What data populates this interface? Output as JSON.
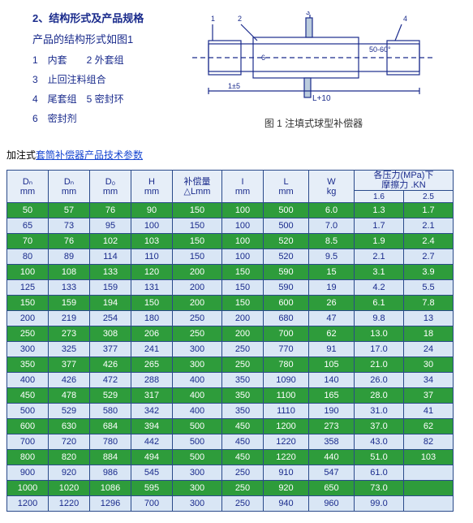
{
  "top": {
    "title": "2、结构形式及产品规格",
    "line1": "产品的结构形式如图1",
    "legend": [
      "1　内套　　2 外套组",
      "3　止回注料组合",
      "4　尾套组　5 密封环",
      "6　密封剂"
    ],
    "caption": "图 1  注填式球型补偿器"
  },
  "subtitle": {
    "plain": "加注式",
    "link": "套筒补偿器产品技术参数"
  },
  "colors": {
    "green": "#2e9c3b",
    "blue": "#d9e6f5",
    "border": "#2a4a8a",
    "ink": "#1a2b8c"
  },
  "headers": {
    "main": [
      "Dₙ\nmm",
      "Dₙ\nmm",
      "D₀\nmm",
      "H\nmm",
      "补偿量\n△Lmm",
      "I\nmm",
      "L\nmm",
      "W\nkg",
      "各压力(MPa)下\n摩擦力 .KN"
    ],
    "sub": [
      "1.6",
      "2.5"
    ]
  },
  "widths": [
    50,
    50,
    50,
    50,
    60,
    50,
    55,
    55,
    60,
    60
  ],
  "rows": [
    [
      "50",
      "57",
      "76",
      "90",
      "150",
      "100",
      "500",
      "6.0",
      "1.3",
      "1.7"
    ],
    [
      "65",
      "73",
      "95",
      "100",
      "150",
      "100",
      "500",
      "7.0",
      "1.7",
      "2.1"
    ],
    [
      "70",
      "76",
      "102",
      "103",
      "150",
      "100",
      "520",
      "8.5",
      "1.9",
      "2.4"
    ],
    [
      "80",
      "89",
      "114",
      "110",
      "150",
      "100",
      "520",
      "9.5",
      "2.1",
      "2.7"
    ],
    [
      "100",
      "108",
      "133",
      "120",
      "200",
      "150",
      "590",
      "15",
      "3.1",
      "3.9"
    ],
    [
      "125",
      "133",
      "159",
      "131",
      "200",
      "150",
      "590",
      "19",
      "4.2",
      "5.5"
    ],
    [
      "150",
      "159",
      "194",
      "150",
      "200",
      "150",
      "600",
      "26",
      "6.1",
      "7.8"
    ],
    [
      "200",
      "219",
      "254",
      "180",
      "250",
      "200",
      "680",
      "47",
      "9.8",
      "13"
    ],
    [
      "250",
      "273",
      "308",
      "206",
      "250",
      "200",
      "700",
      "62",
      "13.0",
      "18"
    ],
    [
      "300",
      "325",
      "377",
      "241",
      "300",
      "250",
      "770",
      "91",
      "17.0",
      "24"
    ],
    [
      "350",
      "377",
      "426",
      "265",
      "300",
      "250",
      "780",
      "105",
      "21.0",
      "30"
    ],
    [
      "400",
      "426",
      "472",
      "288",
      "400",
      "350",
      "1090",
      "140",
      "26.0",
      "34"
    ],
    [
      "450",
      "478",
      "529",
      "317",
      "400",
      "350",
      "1100",
      "165",
      "28.0",
      "37"
    ],
    [
      "500",
      "529",
      "580",
      "342",
      "400",
      "350",
      "1110",
      "190",
      "31.0",
      "41"
    ],
    [
      "600",
      "630",
      "684",
      "394",
      "500",
      "450",
      "1200",
      "273",
      "37.0",
      "62"
    ],
    [
      "700",
      "720",
      "780",
      "442",
      "500",
      "450",
      "1220",
      "358",
      "43.0",
      "82"
    ],
    [
      "800",
      "820",
      "884",
      "494",
      "500",
      "450",
      "1220",
      "440",
      "51.0",
      "103"
    ],
    [
      "900",
      "920",
      "986",
      "545",
      "300",
      "250",
      "910",
      "547",
      "61.0",
      ""
    ],
    [
      "1000",
      "1020",
      "1086",
      "595",
      "300",
      "250",
      "920",
      "650",
      "73.0",
      ""
    ],
    [
      "1200",
      "1220",
      "1296",
      "700",
      "300",
      "250",
      "940",
      "960",
      "99.0",
      ""
    ]
  ]
}
